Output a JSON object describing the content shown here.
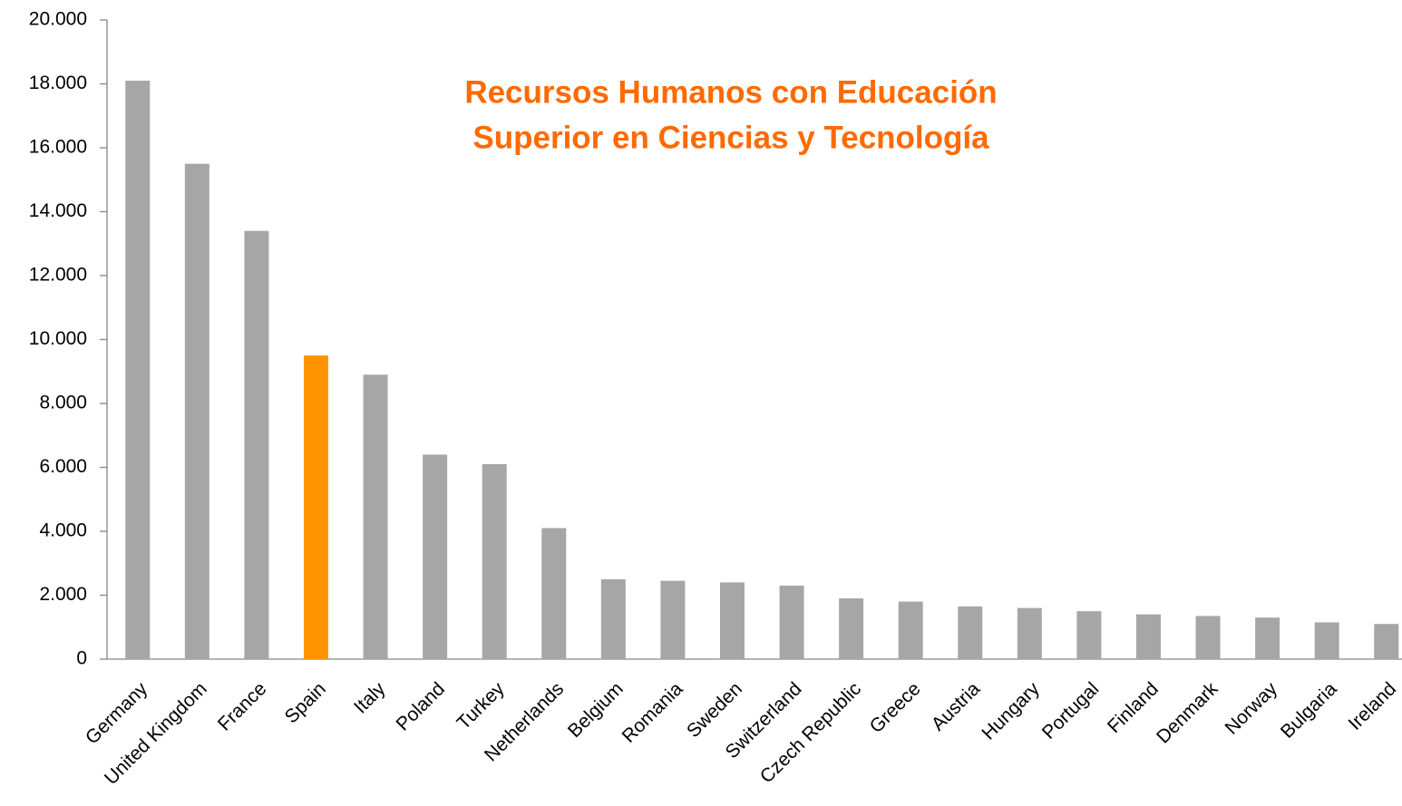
{
  "chart_data": {
    "type": "bar",
    "title": [
      "Recursos Humanos con Educación",
      "Superior en Ciencias y Tecnología"
    ],
    "categories": [
      "Germany",
      "United Kingdom",
      "France",
      "Spain",
      "Italy",
      "Poland",
      "Turkey",
      "Netherlands",
      "Belgium",
      "Romania",
      "Sweden",
      "Switzerland",
      "Czech Republic",
      "Greece",
      "Austria",
      "Hungary",
      "Portugal",
      "Finland",
      "Denmark",
      "Norway",
      "Bulgaria",
      "Ireland"
    ],
    "values": [
      18100,
      15500,
      13400,
      9500,
      8900,
      6400,
      6100,
      4100,
      2500,
      2450,
      2400,
      2300,
      1900,
      1800,
      1650,
      1600,
      1500,
      1400,
      1350,
      1300,
      1150,
      1100
    ],
    "colors": [
      "#a6a6a6",
      "#a6a6a6",
      "#a6a6a6",
      "#ff9400",
      "#a6a6a6",
      "#a6a6a6",
      "#a6a6a6",
      "#a6a6a6",
      "#a6a6a6",
      "#a6a6a6",
      "#a6a6a6",
      "#a6a6a6",
      "#a6a6a6",
      "#a6a6a6",
      "#a6a6a6",
      "#a6a6a6",
      "#a6a6a6",
      "#a6a6a6",
      "#a6a6a6",
      "#a6a6a6",
      "#a6a6a6",
      "#a6a6a6"
    ],
    "ylim": [
      0,
      20000
    ],
    "yticks": [
      0,
      {
        "value": 2000,
        "label": "2.000"
      },
      {
        "value": 4000,
        "label": "4.000"
      },
      {
        "value": 6000,
        "label": "6.000"
      },
      {
        "value": 8000,
        "label": "8.000"
      },
      {
        "value": 10000,
        "label": "10.000"
      },
      {
        "value": 12000,
        "label": "12.000"
      },
      {
        "value": 14000,
        "label": "14.000"
      },
      {
        "value": 16000,
        "label": "16.000"
      },
      {
        "value": 18000,
        "label": "18.000"
      },
      {
        "value": 20000,
        "label": "20.000"
      }
    ],
    "grid": false
  }
}
